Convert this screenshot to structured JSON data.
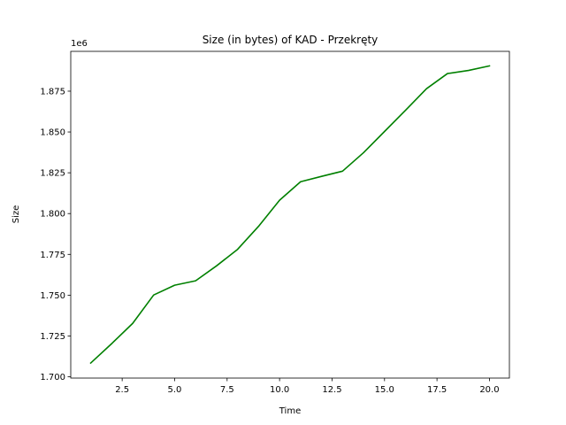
{
  "chart_data": {
    "type": "line",
    "title": "Size (in bytes) of KAD - Przekręty",
    "xlabel": "Time",
    "ylabel": "Size",
    "offset_label": "1e6",
    "xlim": [
      0.05,
      20.95
    ],
    "ylim": [
      1.6992,
      1.8994
    ],
    "grid": false,
    "x_ticks": [
      2.5,
      5.0,
      7.5,
      10.0,
      12.5,
      15.0,
      17.5,
      20.0
    ],
    "x_tick_labels": [
      "2.5",
      "5.0",
      "7.5",
      "10.0",
      "12.5",
      "15.0",
      "17.5",
      "20.0"
    ],
    "y_ticks": [
      1.7,
      1.725,
      1.75,
      1.775,
      1.8,
      1.825,
      1.85,
      1.875
    ],
    "y_tick_labels": [
      "1.700",
      "1.725",
      "1.750",
      "1.775",
      "1.800",
      "1.825",
      "1.850",
      "1.875"
    ],
    "series": [
      {
        "color": "#008000",
        "x": [
          1,
          2,
          3,
          4,
          5,
          6,
          7,
          8,
          9,
          10,
          11,
          12,
          13,
          14,
          15,
          16,
          17,
          18,
          19,
          20
        ],
        "y": [
          1.7084,
          1.7203,
          1.7327,
          1.7501,
          1.7561,
          1.7588,
          1.768,
          1.7781,
          1.7922,
          1.8082,
          1.8195,
          1.8228,
          1.826,
          1.8373,
          1.8503,
          1.8633,
          1.8765,
          1.8858,
          1.8877,
          1.8905
        ]
      }
    ]
  }
}
